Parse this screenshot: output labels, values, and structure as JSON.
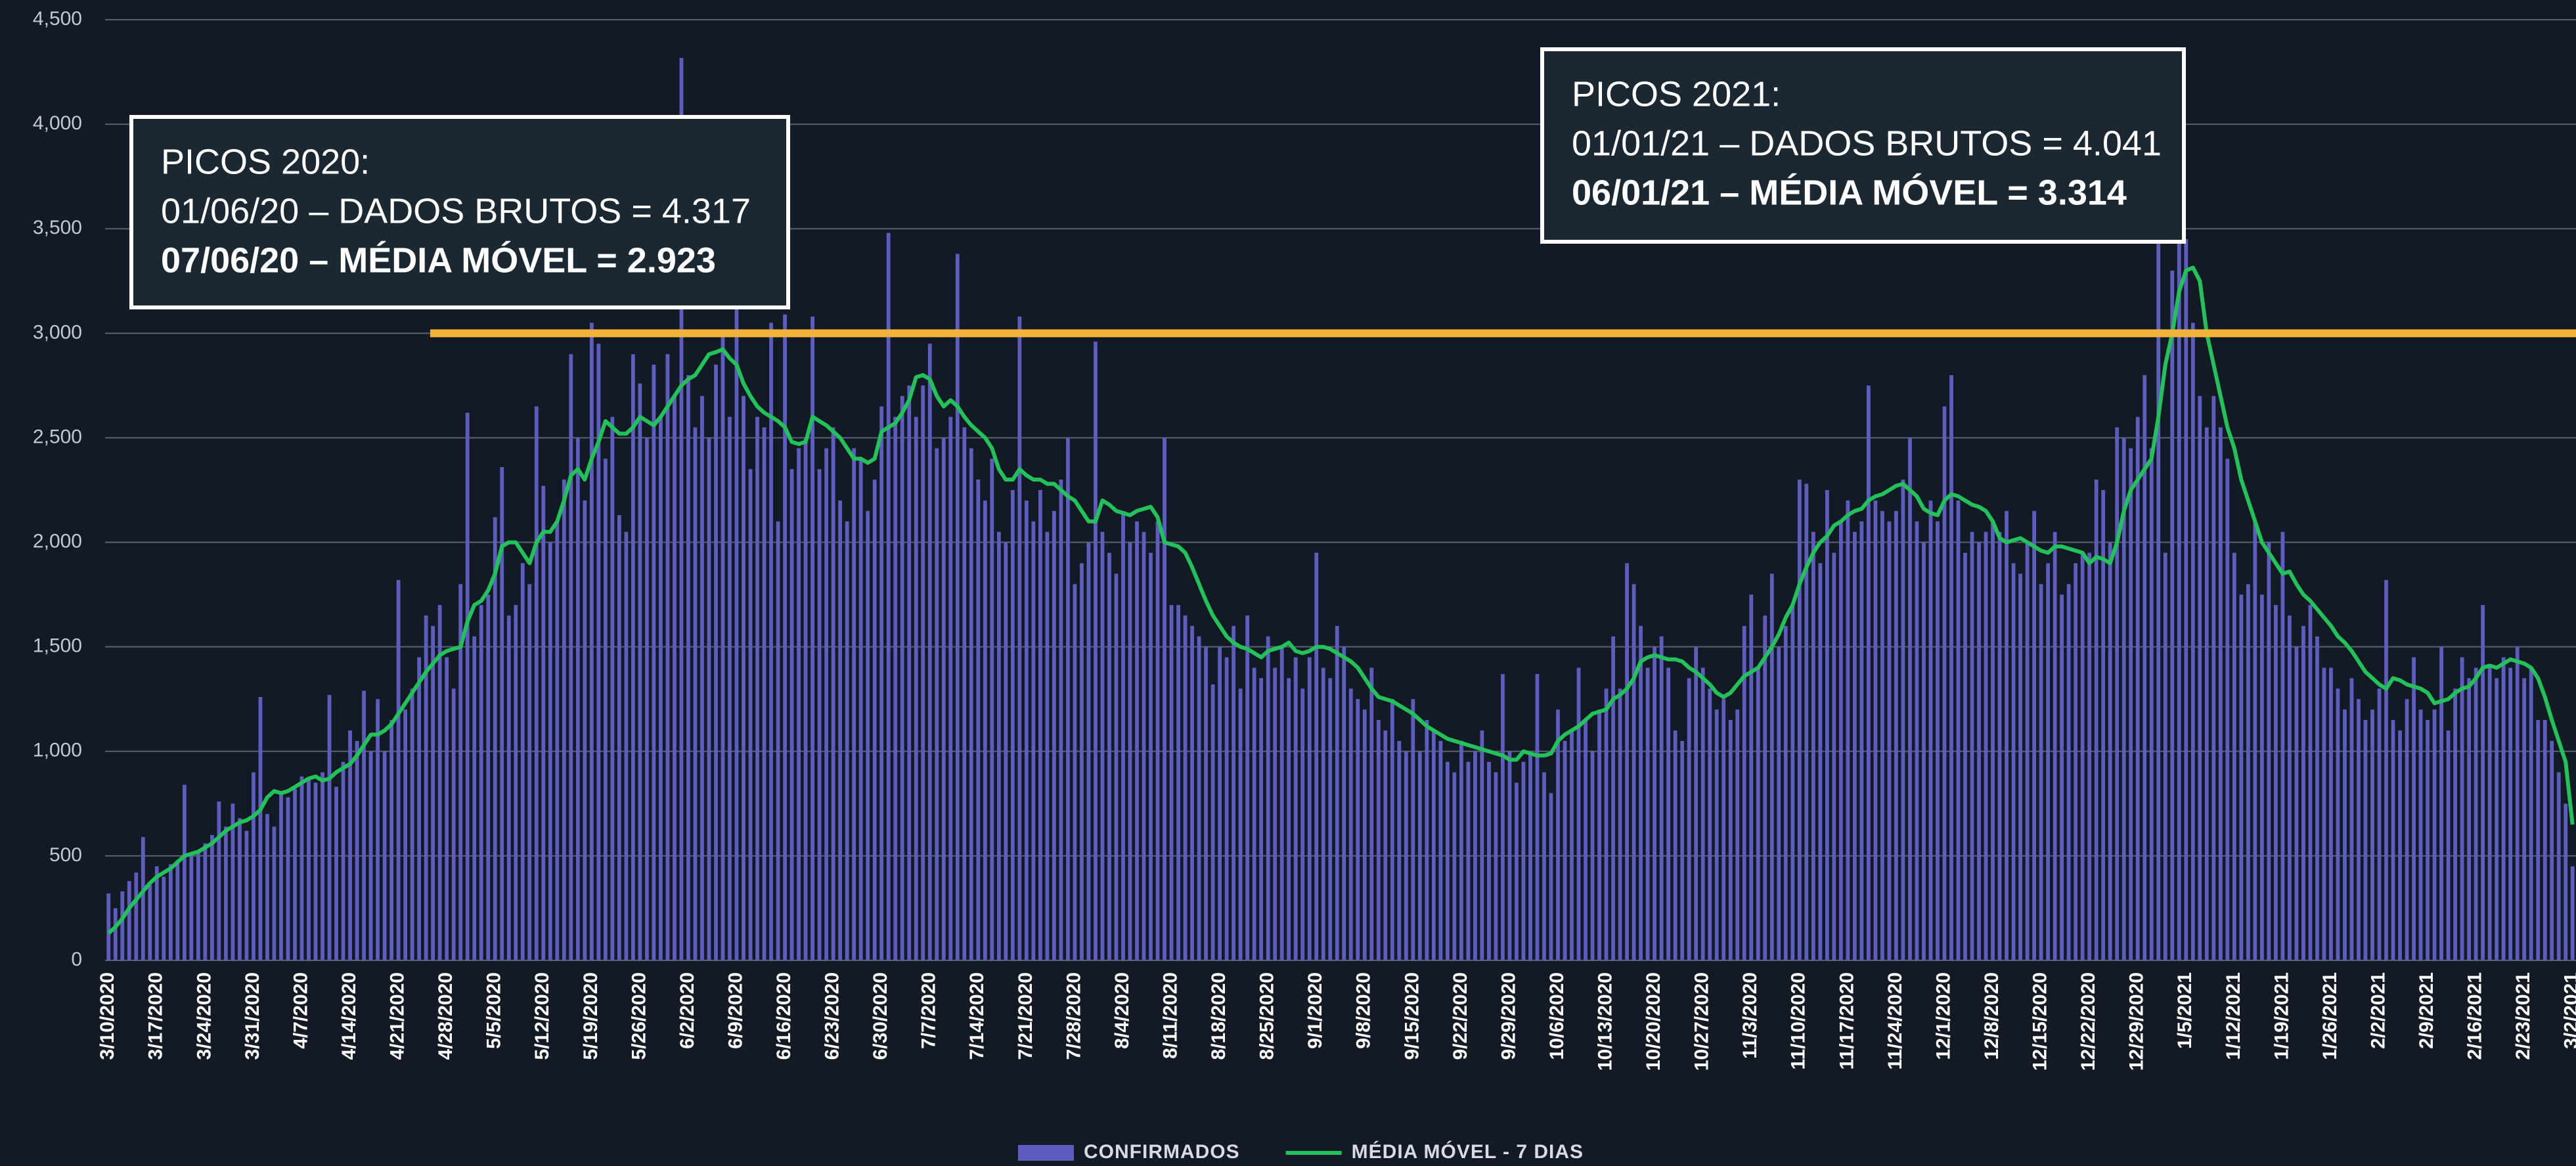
{
  "chart_data": {
    "type": "bar_line",
    "categories": [
      "3/10/2020",
      null,
      null,
      null,
      null,
      null,
      null,
      "3/17/2020",
      null,
      null,
      null,
      null,
      null,
      null,
      "3/24/2020",
      null,
      null,
      null,
      null,
      null,
      null,
      "3/31/2020",
      null,
      null,
      null,
      null,
      null,
      null,
      "4/7/2020",
      null,
      null,
      null,
      null,
      null,
      null,
      "4/14/2020",
      null,
      null,
      null,
      null,
      null,
      null,
      "4/21/2020",
      null,
      null,
      null,
      null,
      null,
      null,
      "4/28/2020",
      null,
      null,
      null,
      null,
      null,
      null,
      "5/5/2020",
      null,
      null,
      null,
      null,
      null,
      null,
      "5/12/2020",
      null,
      null,
      null,
      null,
      null,
      null,
      "5/19/2020",
      null,
      null,
      null,
      null,
      null,
      null,
      "5/26/2020",
      null,
      null,
      null,
      null,
      null,
      null,
      "6/2/2020",
      null,
      null,
      null,
      null,
      null,
      null,
      "6/9/2020",
      null,
      null,
      null,
      null,
      null,
      null,
      "6/16/2020",
      null,
      null,
      null,
      null,
      null,
      null,
      "6/23/2020",
      null,
      null,
      null,
      null,
      null,
      null,
      "6/30/2020",
      null,
      null,
      null,
      null,
      null,
      null,
      "7/7/2020",
      null,
      null,
      null,
      null,
      null,
      null,
      "7/14/2020",
      null,
      null,
      null,
      null,
      null,
      null,
      "7/21/2020",
      null,
      null,
      null,
      null,
      null,
      null,
      "7/28/2020",
      null,
      null,
      null,
      null,
      null,
      null,
      "8/4/2020",
      null,
      null,
      null,
      null,
      null,
      null,
      "8/11/2020",
      null,
      null,
      null,
      null,
      null,
      null,
      "8/18/2020",
      null,
      null,
      null,
      null,
      null,
      null,
      "8/25/2020",
      null,
      null,
      null,
      null,
      null,
      null,
      "9/1/2020",
      null,
      null,
      null,
      null,
      null,
      null,
      "9/8/2020",
      null,
      null,
      null,
      null,
      null,
      null,
      "9/15/2020",
      null,
      null,
      null,
      null,
      null,
      null,
      "9/22/2020",
      null,
      null,
      null,
      null,
      null,
      null,
      "9/29/2020",
      null,
      null,
      null,
      null,
      null,
      null,
      "10/6/2020",
      null,
      null,
      null,
      null,
      null,
      null,
      "10/13/2020",
      null,
      null,
      null,
      null,
      null,
      null,
      "10/20/2020",
      null,
      null,
      null,
      null,
      null,
      null,
      "10/27/2020",
      null,
      null,
      null,
      null,
      null,
      null,
      "11/3/2020",
      null,
      null,
      null,
      null,
      null,
      null,
      "11/10/2020",
      null,
      null,
      null,
      null,
      null,
      null,
      "11/17/2020",
      null,
      null,
      null,
      null,
      null,
      null,
      "11/24/2020",
      null,
      null,
      null,
      null,
      null,
      null,
      "12/1/2020",
      null,
      null,
      null,
      null,
      null,
      null,
      "12/8/2020",
      null,
      null,
      null,
      null,
      null,
      null,
      "12/15/2020",
      null,
      null,
      null,
      null,
      null,
      null,
      "12/22/2020",
      null,
      null,
      null,
      null,
      null,
      null,
      "12/29/2020",
      null,
      null,
      null,
      null,
      null,
      null,
      "1/5/2021",
      null,
      null,
      null,
      null,
      null,
      null,
      "1/12/2021",
      null,
      null,
      null,
      null,
      null,
      null,
      "1/19/2021",
      null,
      null,
      null,
      null,
      null,
      null,
      "1/26/2021",
      null,
      null,
      null,
      null,
      null,
      null,
      "2/2/2021",
      null,
      null,
      null,
      null,
      null,
      null,
      "2/9/2021",
      null,
      null,
      null,
      null,
      null,
      null,
      "2/16/2021",
      null,
      null,
      null,
      null,
      null,
      null,
      "2/23/2021",
      null,
      null,
      null,
      null,
      null,
      null,
      "3/2/2021"
    ],
    "series": [
      {
        "name": "CONFIRMADOS",
        "type": "bar",
        "color": "#5d5dbf",
        "values": [
          320,
          250,
          330,
          380,
          420,
          590,
          360,
          450,
          400,
          460,
          480,
          840,
          500,
          520,
          560,
          600,
          760,
          640,
          750,
          680,
          620,
          900,
          1260,
          700,
          640,
          800,
          780,
          820,
          880,
          870,
          850,
          900,
          1270,
          830,
          950,
          1100,
          1050,
          1290,
          1000,
          1250,
          1000,
          1150,
          1820,
          1200,
          1300,
          1450,
          1650,
          1600,
          1700,
          1450,
          1300,
          1800,
          2620,
          1550,
          1700,
          1750,
          2120,
          2360,
          1650,
          1700,
          1900,
          1800,
          2650,
          2270,
          2000,
          2100,
          2300,
          2900,
          2500,
          2200,
          3050,
          2950,
          2400,
          2600,
          2130,
          2050,
          2900,
          2760,
          2500,
          2850,
          2600,
          2900,
          2700,
          4317,
          2800,
          2550,
          2700,
          2500,
          2850,
          3000,
          2600,
          3150,
          2700,
          2350,
          2600,
          2550,
          3050,
          2100,
          3090,
          2350,
          2450,
          2500,
          3080,
          2350,
          2450,
          2550,
          2200,
          2100,
          2450,
          2400,
          2150,
          2300,
          2650,
          3480,
          2600,
          2700,
          2750,
          2600,
          2750,
          2950,
          2450,
          2500,
          2600,
          3380,
          2550,
          2450,
          2300,
          2200,
          2400,
          2050,
          2000,
          2250,
          3080,
          2200,
          2100,
          2250,
          2050,
          2150,
          2300,
          2500,
          1800,
          1900,
          2000,
          2960,
          2050,
          1950,
          1850,
          2150,
          2000,
          2100,
          2050,
          1950,
          2100,
          2500,
          1700,
          1700,
          1650,
          1600,
          1550,
          1500,
          1320,
          1500,
          1450,
          1600,
          1300,
          1650,
          1400,
          1350,
          1550,
          1400,
          1500,
          1350,
          1450,
          1300,
          1450,
          1950,
          1400,
          1350,
          1600,
          1500,
          1300,
          1250,
          1200,
          1400,
          1150,
          1100,
          1250,
          1050,
          1000,
          1250,
          1000,
          1150,
          1100,
          1050,
          950,
          900,
          1050,
          950,
          1000,
          1100,
          950,
          900,
          1370,
          1000,
          850,
          950,
          1000,
          1370,
          900,
          800,
          1200,
          1050,
          1100,
          1400,
          1150,
          1000,
          1200,
          1300,
          1550,
          1300,
          1900,
          1800,
          1600,
          1400,
          1500,
          1550,
          1400,
          1100,
          1050,
          1350,
          1500,
          1400,
          1300,
          1200,
          1250,
          1150,
          1200,
          1600,
          1750,
          1400,
          1650,
          1850,
          1500,
          1600,
          1700,
          2300,
          2280,
          2050,
          1900,
          2250,
          1950,
          2100,
          2200,
          2050,
          2100,
          2750,
          2200,
          2150,
          2100,
          2150,
          2300,
          2500,
          2100,
          2000,
          2200,
          2100,
          2650,
          2800,
          2200,
          1950,
          2050,
          2000,
          2050,
          2100,
          2050,
          2150,
          1900,
          1850,
          2000,
          2150,
          1800,
          1900,
          2050,
          1750,
          1800,
          1900,
          1950,
          1950,
          2300,
          2250,
          2000,
          2550,
          2500,
          2450,
          2600,
          2800,
          2450,
          4041,
          1950,
          3300,
          3550,
          3450,
          3050,
          2700,
          2550,
          2700,
          2550,
          2400,
          1950,
          1750,
          1800,
          2100,
          1750,
          2000,
          1700,
          2050,
          1650,
          1500,
          1600,
          1700,
          1550,
          1400,
          1400,
          1300,
          1200,
          1350,
          1250,
          1150,
          1200,
          1300,
          1820,
          1150,
          1100,
          1250,
          1450,
          1200,
          1150,
          1200,
          1500,
          1100,
          1300,
          1450,
          1350,
          1400,
          1700,
          1400,
          1350,
          1450,
          1400,
          1500,
          1350,
          1400,
          1150,
          1150,
          1050,
          900,
          750,
          450
        ]
      },
      {
        "name": "MÉDIA MÓVEL - 7 DIAS",
        "type": "line",
        "color": "#23c15a",
        "values": [
          130,
          160,
          200,
          250,
          290,
          330,
          370,
          400,
          420,
          440,
          470,
          500,
          510,
          520,
          540,
          560,
          590,
          620,
          640,
          660,
          670,
          690,
          720,
          780,
          810,
          800,
          810,
          830,
          850,
          870,
          880,
          860,
          870,
          900,
          920,
          940,
          980,
          1030,
          1080,
          1080,
          1100,
          1130,
          1180,
          1230,
          1280,
          1330,
          1380,
          1420,
          1460,
          1480,
          1490,
          1500,
          1620,
          1700,
          1720,
          1770,
          1850,
          1980,
          2000,
          2000,
          1950,
          1900,
          2000,
          2050,
          2050,
          2100,
          2200,
          2320,
          2350,
          2300,
          2400,
          2480,
          2580,
          2550,
          2520,
          2520,
          2550,
          2600,
          2580,
          2560,
          2600,
          2650,
          2700,
          2750,
          2780,
          2800,
          2850,
          2900,
          2910,
          2923,
          2880,
          2850,
          2760,
          2700,
          2650,
          2620,
          2600,
          2580,
          2550,
          2480,
          2470,
          2480,
          2600,
          2580,
          2560,
          2530,
          2500,
          2450,
          2400,
          2400,
          2380,
          2400,
          2530,
          2550,
          2570,
          2620,
          2680,
          2790,
          2800,
          2780,
          2700,
          2650,
          2680,
          2650,
          2600,
          2560,
          2530,
          2500,
          2450,
          2350,
          2300,
          2300,
          2350,
          2320,
          2300,
          2300,
          2280,
          2280,
          2250,
          2220,
          2200,
          2150,
          2100,
          2100,
          2200,
          2180,
          2150,
          2140,
          2130,
          2150,
          2160,
          2170,
          2120,
          2000,
          1990,
          1980,
          1950,
          1880,
          1800,
          1720,
          1650,
          1600,
          1550,
          1520,
          1500,
          1490,
          1470,
          1450,
          1480,
          1490,
          1500,
          1520,
          1480,
          1470,
          1480,
          1500,
          1500,
          1490,
          1470,
          1450,
          1430,
          1400,
          1350,
          1300,
          1260,
          1250,
          1240,
          1220,
          1200,
          1180,
          1150,
          1120,
          1100,
          1080,
          1060,
          1050,
          1040,
          1030,
          1020,
          1010,
          1000,
          990,
          980,
          960,
          960,
          1000,
          990,
          980,
          980,
          990,
          1050,
          1080,
          1100,
          1120,
          1150,
          1180,
          1190,
          1200,
          1250,
          1270,
          1300,
          1350,
          1430,
          1450,
          1460,
          1450,
          1440,
          1440,
          1430,
          1400,
          1380,
          1350,
          1320,
          1280,
          1260,
          1280,
          1320,
          1360,
          1380,
          1400,
          1450,
          1500,
          1560,
          1640,
          1700,
          1800,
          1880,
          1950,
          2000,
          2030,
          2080,
          2100,
          2130,
          2150,
          2160,
          2200,
          2220,
          2230,
          2250,
          2270,
          2280,
          2250,
          2220,
          2160,
          2140,
          2130,
          2200,
          2230,
          2220,
          2200,
          2180,
          2170,
          2150,
          2100,
          2020,
          2000,
          2010,
          2020,
          2000,
          1980,
          1960,
          1950,
          1980,
          1980,
          1970,
          1960,
          1950,
          1900,
          1930,
          1920,
          1900,
          2000,
          2150,
          2250,
          2300,
          2350,
          2400,
          2600,
          2850,
          3000,
          3200,
          3300,
          3314,
          3250,
          3000,
          2850,
          2700,
          2550,
          2450,
          2300,
          2200,
          2100,
          2000,
          1950,
          1900,
          1850,
          1860,
          1800,
          1750,
          1720,
          1680,
          1640,
          1600,
          1550,
          1520,
          1480,
          1430,
          1380,
          1350,
          1320,
          1300,
          1350,
          1340,
          1320,
          1310,
          1300,
          1280,
          1230,
          1240,
          1250,
          1280,
          1300,
          1310,
          1350,
          1400,
          1410,
          1400,
          1420,
          1440,
          1430,
          1420,
          1400,
          1350,
          1260,
          1150,
          1050,
          950,
          650
        ]
      }
    ],
    "ylim": [
      0,
      4500
    ],
    "yticks": [
      0,
      500,
      {
        "value": 1000,
        "label": "1,000"
      },
      {
        "value": 1500,
        "label": "1,500"
      },
      {
        "value": 2000,
        "label": "2,000"
      },
      {
        "value": 2500,
        "label": "2,500"
      },
      {
        "value": 3000,
        "label": "3,000"
      },
      {
        "value": 3500,
        "label": "3,500"
      },
      {
        "value": 4000,
        "label": "4,000"
      },
      {
        "value": 4500,
        "label": "4,500"
      }
    ],
    "grid": true,
    "reference_line": {
      "value": 3000,
      "color": "#f2b33d"
    },
    "annotations": [
      {
        "lines": [
          "PICOS 2020:",
          "01/06/20 – DADOS BRUTOS = 4.317",
          "07/06/20 – MÉDIA MÓVEL = 2.923"
        ]
      },
      {
        "lines": [
          "PICOS 2021:",
          "01/01/21 – DADOS BRUTOS = 4.041",
          "06/01/21 – MÉDIA MÓVEL = 3.314"
        ]
      }
    ],
    "legend": "bottom"
  }
}
